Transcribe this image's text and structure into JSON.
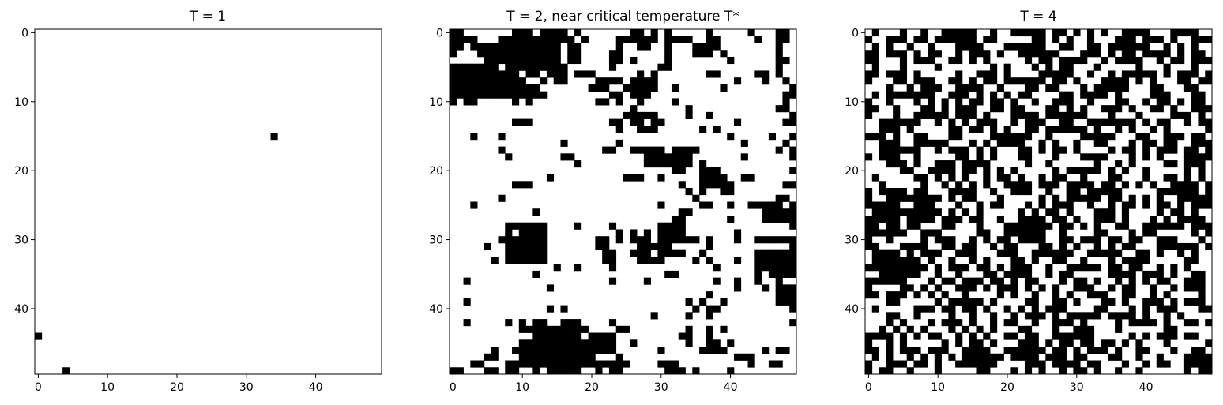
{
  "chart_data": [
    {
      "type": "heatmap",
      "title": "T = 1",
      "grid_size": 50,
      "x_ticks": [
        0,
        10,
        20,
        30,
        40
      ],
      "y_ticks": [
        0,
        10,
        20,
        30,
        40
      ],
      "xlim": [
        -0.5,
        49.5
      ],
      "ylim": [
        49.5,
        -0.5
      ],
      "colormap": {
        "-1": "#000000",
        "1": "#ffffff"
      },
      "rows": [
        "..................................................",
        "..................................................",
        "..................................................",
        "..................................................",
        "..................................................",
        "..................................................",
        "..................................................",
        "..................................................",
        "..................................................",
        "..................................................",
        "..................................................",
        "..................................................",
        "..................................................",
        "..................................................",
        "..................................................",
        "..................................#...............",
        "..................................................",
        "..................................................",
        "..................................................",
        "..................................................",
        "..................................................",
        "..................................................",
        "..................................................",
        "..................................................",
        "..................................................",
        "..................................................",
        "..................................................",
        "..................................................",
        "..................................................",
        "..................................................",
        "..................................................",
        "..................................................",
        "..................................................",
        "..................................................",
        "..................................................",
        "..................................................",
        "..................................................",
        "..................................................",
        "..................................................",
        "..................................................",
        "..................................................",
        "..................................................",
        "..................................................",
        "..................................................",
        "#.................................................",
        "..................................................",
        "..................................................",
        "..................................................",
        "..................................................",
        "....#............................................."
      ]
    },
    {
      "type": "heatmap",
      "title": "T = 2, near critical temperature T*",
      "grid_size": 50,
      "x_ticks": [
        0,
        10,
        20,
        30,
        40
      ],
      "y_ticks": [
        0,
        10,
        20,
        30,
        40
      ],
      "xlim": [
        -0.5,
        49.5
      ],
      "ylim": [
        49.5,
        -0.5
      ],
      "colormap": {
        "-1": "#000000",
        "1": "#ffffff"
      },
      "rows": [
        "##.......###.####.#.......##.#.#.....#.....#...##.",
        "####...###########.#....######.####..##.....#..##.",
        "##.#############.##.....#..##..#...####........#..",
        "#...############.##....##......#...###.#.......#..",
        ".....###########.##....##.#....#........#......##.",
        "#######.#########......#......##...............#..",
        "##########.##.###.###......#.#.......##.....##.#..",
        "###########..#.##....####.####...........#...#..#.",
        "#############.......###..#####..#......#.........#",
        "##############.........##.###...................##",
        "#.##.....#.#.........##.#..#....#...............#.",
        "..........................#.......#............##.",
        ".........................#####....#..#...........#",
        ".........###...........##.##.##..........#......##",
        "........................#..###......#.#...........",
        "...#...#................................#.....#..#",
        "................#.......#.................#.....#.",
        ".......#..............##..#####.####...........#.#",
        "........#.......##..........#######.......#......#",
        "..................#.........#######.#.............",
        "................................##..###..........#",
        "..............#..........###..#.....####..##......",
        ".........###.....................#..#####.......##",
        "..................................#.#..##.........",
        ".......#...........................#...........##.",
        "...#..........................#.....##..#..#####.#",
        "............#....................##..........#####",
        "................................##......#....#####",
        "........######....#....#......####...............#",
        "........#.####..........#.#.#.####.......#........",
        ".......#######.......##.#.###.######.#...#..######",
        ".....#..######.......##....#####.....#...........#",
        "........######........##..###.####..#.......######",
        "......#.######........##...####....#.#...#..######",
        "...............#..#....#..............#.....######",
        "............#..................##...........#.####",
        "..#....................#....#.........#..#..#..#..",
        "..............#..........................#...#.###",
        ".....................................#.........###",
        "..#...............................#.#..#.......###",
        "..............#.#..................#.##..........#",
        ".............................#....#..#............",
        "..#.....#.#.##..###....#.........................#",
        "..........##########....##........#..#.#..........",
        "............#######.####.........##..#............",
        "..........##############..#.......#..##.#.........",
        "......#..###############......#.....####.....#.##.",
        ".....##...###########...#................###......",
        "...##...##################....###..........#..##..",
        "##...##.##..#.#####..#.##......###.#....#........."
      ]
    },
    {
      "type": "heatmap",
      "title": "T = 4",
      "grid_size": 50,
      "x_ticks": [
        0,
        10,
        20,
        30,
        40
      ],
      "y_ticks": [
        0,
        10,
        20,
        30,
        40
      ],
      "xlim": [
        -0.5,
        49.5
      ],
      "ylim": [
        49.5,
        -0.5
      ],
      "colormap": {
        "-1": "#000000",
        "1": "#ffffff"
      },
      "rows": [
        ".#...#..#..#####..#..#####.##.#.#.#..####...####..",
        "#..###.##.######.##.....##.#.#..#...###.###.#..###",
        ".#.#..#..#...####...######..##..##.######..#.#.#..",
        "##.###.#.##..#.###.#..######...###.#.##.####.#.##.",
        "##...#.###..##.#.#.....#.##.####..#.####..#.##.###",
        ".#...#....#.......#.#...#.#.##...#.....#...#...#..",
        "##.###.#.....#..###.#....#####..#..#.#####.#.###.#",
        "#...##.###..##.#.##.######.##.#...####.#.#...##.##",
        "...#..#.###..####..#...##.##...#.#####...##...##..",
        ".#.#######..###.#.#.#.##....##.####.#....###...##.",
        "#..#...#.#.#.#.##.##.#..#..###..#...##..#.##.#.##.",
        "##..#...##.#.###..##.##...##.#.#..###.#..##.#..###",
        "#...#..#####.###.#...####.######...#...#....###.#.",
        "..######..#.#.#.###..#.###..##..#######.#.##..#.##",
        "..###.#.....##.##.#.#..##.######.#..#.#..#.#.....#",
        "###.#..##...##....######..#....#####...##..###.##.",
        "..###..#####...#.#.####..#.#..#..##...#.##.##..###",
        "..######..#.###.#.#...##.#.##.#....#.##.#.###.##.#",
        "#.###..#.....##.#.#...##...#...####...#.#.#...####",
        "...###.#..###.####.....#..#......#..#.#....##.###.",
        ".....##..####.##.#.#.#.....#.#####.#.#..#.....#.#.",
        ".#.....##.#.#.#..#.##.#..#.##..#...##...#..##.#.#.",
        "..#.....#..#.#.#.#..####.###.####.##.#.#.#..####.#",
        "#.####.##...####..#..###..#..##.#####.....######.#",
        "#..########.#.##...#.....#.#.#####.##.#.#.#..#####",
        "#####..###...#..#.##...#.#.###..#..#.##.#.##.#.###",
        ".##########.#.#.#.....#.#.##.#...###.#....#.##.#..",
        "#####.####.###.##..#..####.##.#..###.#...#.#.####.",
        "##.##.##...##...#...#######.##.#.#..##..######.###",
        "######..###.....##..######..#....##...#.##.....#.#",
        "#..#....#.###..#.#.##.####..##.###.##.##..###...#.",
        "##...####..##.##..#.##...##.#.#..#.#.##...######.#",
        ".####.#.###..###...###..######..#####..##.#..#.#..",
        ".#######.#..#..#.#...##.#..##..#...#.####.....##..",
        "#########.#.###.##.#.###..#..#####.##.##..#.#.#...",
        "..######..#..#...##.####..#.##.....####.###.#..##.",
        "######...#.##.###.##.#.##...#.##.#..#.#.#.##..###.",
        "#....##.#.#..###.#.###.#.#.#..###..#.##..#..#.###.",
        "##.###.#.#.#..#....#.#..#..#.#..###..##..#.#....#.",
        "...##.....#.#####.#....##..##.#...##.#..###.#.###.",
        ".#.....###.##.##.#..#.#.#.###....##...#.#.###...##",
        "...##..#....#..#..#..#.###.#.#####.####.#..#.#....",
        "...#.#...#.###.#..#.##..#..###.#....#.####.#..##.#",
        "..#.#.#.#...#.#.#.#...##...#..###...#......##.....",
        "####.#.#.##..#.#.#..##.##..######.....#.#.###.##..",
        "#..#.#.....#.#.##.#...###.#.##.##.##.#.#...#.....#",
        "##.#.###.###..####..######.##.#.###.#..##...#..##.",
        ".#.#..#.#.#.#.######.####.###.##...##..#..#...####",
        "#..###.##.#..######....###.####.##...#..#.##..####",
        "#.##..#...#.....##...#.#.#..#.##.#..#..#......#.##"
      ]
    }
  ]
}
